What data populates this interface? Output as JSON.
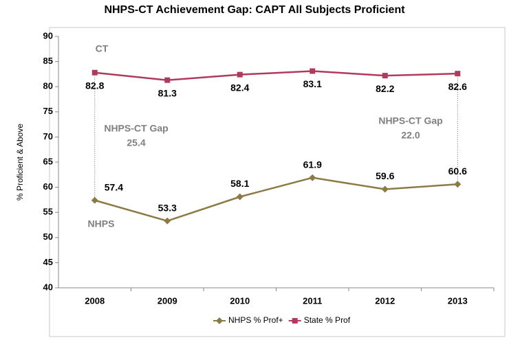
{
  "chart_data": {
    "type": "line",
    "title": "NHPS-CT Achievement Gap: CAPT All Subjects Proficient",
    "y_label": "% Proficient & Above",
    "categories": [
      "2008",
      "2009",
      "2010",
      "2011",
      "2012",
      "2013"
    ],
    "series": [
      {
        "name": "NHPS % Prof+",
        "color": "#8c7a45",
        "marker": "diamond",
        "values": [
          57.4,
          53.3,
          58.1,
          61.9,
          59.6,
          60.6
        ]
      },
      {
        "name": "State % Prof",
        "color": "#b03a5b",
        "marker": "square",
        "values": [
          82.8,
          81.3,
          82.4,
          83.1,
          82.2,
          82.6
        ]
      }
    ],
    "ylim": [
      40,
      90
    ],
    "yticks": [
      40,
      45,
      50,
      55,
      60,
      65,
      70,
      75,
      80,
      85,
      90
    ],
    "grid": false,
    "legend": "bottom",
    "annotations": [
      "CT",
      "NHPS",
      "NHPS-CT Gap",
      "25.4",
      "NHPS-CT Gap",
      "22.0"
    ]
  }
}
